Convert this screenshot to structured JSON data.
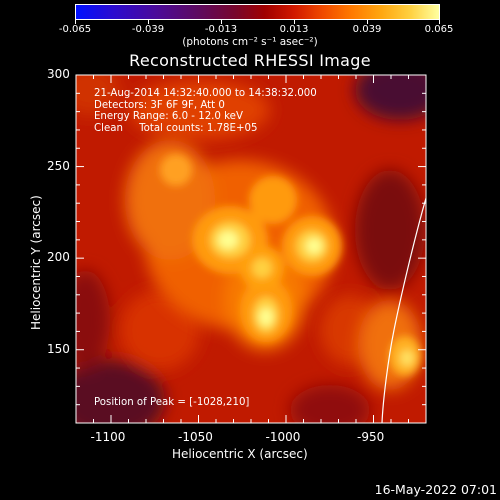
{
  "colorbar": {
    "tick_labels": [
      "-0.065",
      "-0.039",
      "-0.013",
      "0.013",
      "0.039",
      "0.065"
    ],
    "units_label": "(photons cm⁻² s⁻¹ asec⁻²)"
  },
  "chart_data": {
    "type": "heatmap",
    "title": "Reconstructed RHESSI Image",
    "xlabel": "Heliocentric X (arcsec)",
    "ylabel": "Heliocentric Y (arcsec)",
    "xlim": [
      -1120,
      -920
    ],
    "ylim": [
      110,
      300
    ],
    "x_ticks": [
      "-1100",
      "-1050",
      "-1000",
      "-950"
    ],
    "y_ticks": [
      "150",
      "200",
      "250",
      "300"
    ],
    "color_range": [
      -0.065,
      0.065
    ],
    "peak": {
      "x": -1028,
      "y": 210
    },
    "bright_sources": [
      {
        "x": -1028,
        "y": 210
      },
      {
        "x": -982,
        "y": 206
      },
      {
        "x": -1005,
        "y": 168
      },
      {
        "x": -1010,
        "y": 193
      },
      {
        "x": -930,
        "y": 150
      },
      {
        "x": -1040,
        "y": 250
      }
    ]
  },
  "info_lines": [
    "21-Aug-2014 14:32:40.000 to 14:38:32.000",
    "Detectors: 3F 6F 9F, Att 0",
    "Energy Range: 6.0 - 12.0 keV",
    "Clean     Total counts: 1.78E+05"
  ],
  "peak_label": "Position of Peak = [-1028,210]",
  "timestamp": "16-May-2022 07:01"
}
